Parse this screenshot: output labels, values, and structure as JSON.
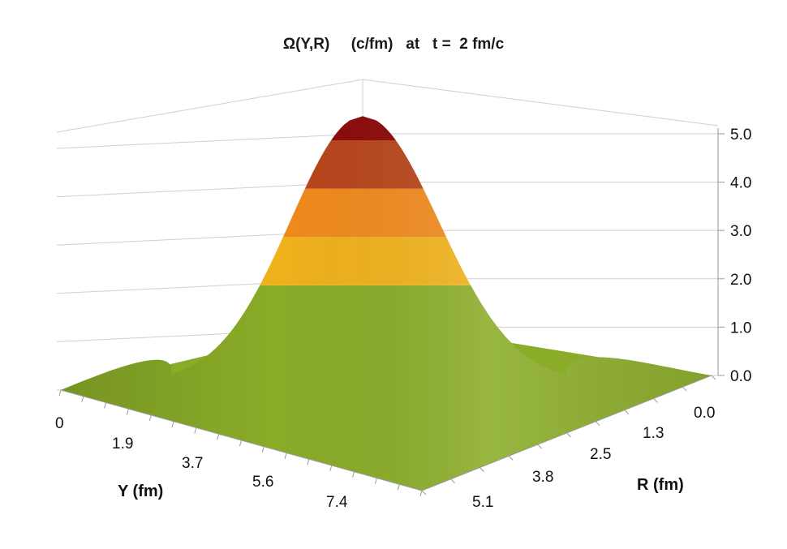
{
  "chart_data": {
    "type": "surface",
    "title": "Ω(Y,R)     (c/fm)   at   t =  2 fm/c",
    "z_ticks": [
      "0.0",
      "1.0",
      "2.0",
      "3.0",
      "4.0",
      "5.0"
    ],
    "z_range": [
      0,
      5.6
    ],
    "y_axis_label": "Y  (fm)",
    "y_ticks": [
      "0",
      "1.9",
      "3.7",
      "5.6",
      "7.4"
    ],
    "r_axis_label": "R  (fm)",
    "r_ticks": [
      "0.0",
      "1.3",
      "2.5",
      "3.8",
      "5.1"
    ],
    "peak_value": 5.5,
    "color_bands": [
      {
        "from": 0.0,
        "to": 2.0,
        "color": "#8aac28"
      },
      {
        "from": 2.0,
        "to": 3.0,
        "color": "#f0b21c"
      },
      {
        "from": 3.0,
        "to": 4.0,
        "color": "#f08a1e"
      },
      {
        "from": 4.0,
        "to": 5.0,
        "color": "#b8461c"
      },
      {
        "from": 5.0,
        "to": 6.0,
        "color": "#8c0a0a"
      }
    ],
    "grid": true
  }
}
